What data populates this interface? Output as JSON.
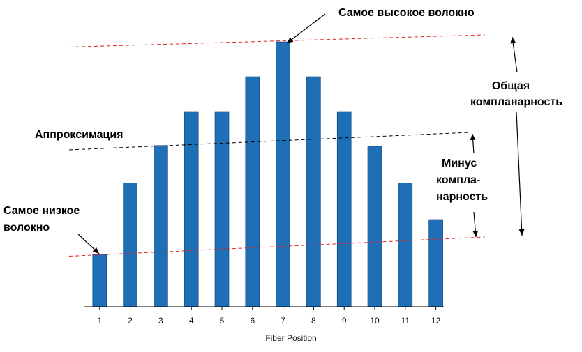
{
  "chart_data": {
    "type": "bar",
    "title": "",
    "xlabel": "Fiber Position",
    "ylabel": "",
    "categories": [
      "1",
      "2",
      "3",
      "4",
      "5",
      "6",
      "7",
      "8",
      "9",
      "10",
      "11",
      "12"
    ],
    "values": [
      3,
      7.1,
      9.25,
      11.2,
      11.2,
      13.2,
      15.2,
      13.2,
      11.2,
      9.2,
      7.1,
      5
    ],
    "ylim": [
      0,
      16
    ],
    "grid": false,
    "legend": "none",
    "bar_color": "#1f6fb7",
    "annotations": {
      "highest_fiber": "Самое высокое волокно",
      "lowest_fiber_line1": "Самое низкое",
      "lowest_fiber_line2": "волокно",
      "fit": "Аппроксимация",
      "total_coplanarity_line1": "Общая",
      "total_coplanarity_line2": "компланарность",
      "minus_coplanarity_line1": "Минус",
      "minus_coplanarity_line2": "компла-",
      "minus_coplanarity_line3": "нарность"
    },
    "reference_lines": [
      {
        "name": "upper",
        "style": "dashed",
        "color": "#e02020",
        "x_start": 0,
        "y_start": 14.9,
        "x_end": 13.6,
        "y_end": 15.6
      },
      {
        "name": "fit",
        "style": "dashed",
        "color": "#000000",
        "x_start": 0,
        "y_start": 9.0,
        "x_end": 13.1,
        "y_end": 10.0
      },
      {
        "name": "lower",
        "style": "dashed",
        "color": "#e02020",
        "x_start": 0,
        "y_start": 2.9,
        "x_end": 13.6,
        "y_end": 4.0
      }
    ]
  }
}
